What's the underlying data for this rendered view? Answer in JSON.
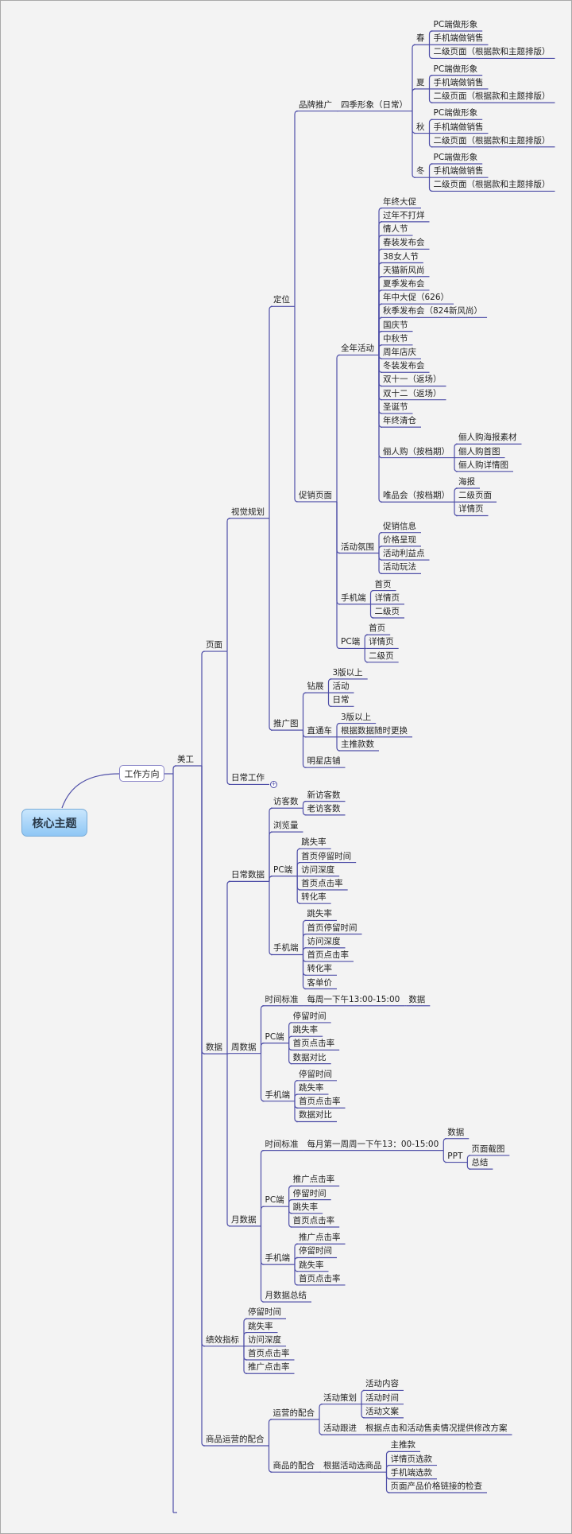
{
  "colors": {
    "line": "#4f4fa8",
    "background": "#f3f3f3",
    "root_fill": "#8fc7f5"
  },
  "map": {
    "root": "核心主题",
    "main": "工作方向",
    "branch": {
      "label": "美工",
      "children": [
        {
          "label": "页面",
          "children": [
            {
              "label": "视觉规划",
              "children": [
                {
                  "label": "定位",
                  "children": [
                    {
                      "label": "品牌推广",
                      "children": [
                        {
                          "label": "四季形象（日常）",
                          "children": [
                            {
                              "label": "春",
                              "children": [
                                {
                                  "label": "PC端做形象"
                                },
                                {
                                  "label": "手机端做销售"
                                },
                                {
                                  "label": "二级页面（根据款和主题排版）"
                                }
                              ]
                            },
                            {
                              "label": "夏",
                              "children": [
                                {
                                  "label": "PC端做形象"
                                },
                                {
                                  "label": "手机端做销售"
                                },
                                {
                                  "label": "二级页面（根据款和主题排版）"
                                }
                              ]
                            },
                            {
                              "label": "秋",
                              "children": [
                                {
                                  "label": "PC端做形象"
                                },
                                {
                                  "label": "手机端做销售"
                                },
                                {
                                  "label": "二级页面（根据款和主题排版）"
                                }
                              ]
                            },
                            {
                              "label": "冬",
                              "children": [
                                {
                                  "label": "PC端做形象"
                                },
                                {
                                  "label": "手机端做销售"
                                },
                                {
                                  "label": "二级页面（根据款和主题排版）"
                                }
                              ]
                            }
                          ]
                        }
                      ]
                    },
                    {
                      "label": "促销页面",
                      "children": [
                        {
                          "label": "全年活动",
                          "children": [
                            {
                              "label": "年终大促"
                            },
                            {
                              "label": "过年不打烊"
                            },
                            {
                              "label": "情人节"
                            },
                            {
                              "label": "春装发布会"
                            },
                            {
                              "label": "38女人节"
                            },
                            {
                              "label": "天猫新风尚"
                            },
                            {
                              "label": "夏季发布会"
                            },
                            {
                              "label": "年中大促（626）"
                            },
                            {
                              "label": "秋季发布会（824新风尚）"
                            },
                            {
                              "label": "国庆节"
                            },
                            {
                              "label": "中秋节"
                            },
                            {
                              "label": "周年店庆"
                            },
                            {
                              "label": "冬装发布会"
                            },
                            {
                              "label": "双十一（返场）"
                            },
                            {
                              "label": "双十二（返场）"
                            },
                            {
                              "label": "圣诞节"
                            },
                            {
                              "label": "年终清仓"
                            },
                            {
                              "label": "俪人购（按档期）",
                              "children": [
                                {
                                  "label": "俪人购海报素材"
                                },
                                {
                                  "label": "俪人购首图"
                                },
                                {
                                  "label": "俪人购详情图"
                                }
                              ]
                            },
                            {
                              "label": "唯品会（按档期）",
                              "children": [
                                {
                                  "label": "海报"
                                },
                                {
                                  "label": "二级页面"
                                },
                                {
                                  "label": "详情页"
                                }
                              ]
                            }
                          ]
                        },
                        {
                          "label": "活动氛围",
                          "children": [
                            {
                              "label": "促销信息"
                            },
                            {
                              "label": "价格呈现"
                            },
                            {
                              "label": "活动利益点"
                            },
                            {
                              "label": "活动玩法"
                            }
                          ]
                        },
                        {
                          "label": "手机端",
                          "children": [
                            {
                              "label": "首页"
                            },
                            {
                              "label": "详情页"
                            },
                            {
                              "label": "二级页"
                            }
                          ]
                        },
                        {
                          "label": "PC端",
                          "children": [
                            {
                              "label": "首页"
                            },
                            {
                              "label": "详情页"
                            },
                            {
                              "label": "二级页"
                            }
                          ]
                        }
                      ]
                    }
                  ]
                },
                {
                  "label": "推广图",
                  "children": [
                    {
                      "label": "钻展",
                      "children": [
                        {
                          "label": "3版以上"
                        },
                        {
                          "label": "活动"
                        },
                        {
                          "label": "日常"
                        }
                      ]
                    },
                    {
                      "label": "直通车",
                      "children": [
                        {
                          "label": "3版以上"
                        },
                        {
                          "label": "根据数据随时更换"
                        },
                        {
                          "label": "主推款数"
                        }
                      ]
                    },
                    {
                      "label": "明星店铺"
                    }
                  ]
                }
              ]
            },
            {
              "label": "日常工作",
              "collapsed": true
            }
          ]
        },
        {
          "label": "数据",
          "children": [
            {
              "label": "日常数据",
              "children": [
                {
                  "label": "访客数",
                  "children": [
                    {
                      "label": "新访客数"
                    },
                    {
                      "label": "老访客数"
                    }
                  ]
                },
                {
                  "label": "浏览量"
                },
                {
                  "label": "PC端",
                  "children": [
                    {
                      "label": "跳失率"
                    },
                    {
                      "label": "首页停留时间"
                    },
                    {
                      "label": "访问深度"
                    },
                    {
                      "label": "首页点击率"
                    },
                    {
                      "label": "转化率"
                    }
                  ]
                },
                {
                  "label": "手机端",
                  "children": [
                    {
                      "label": "跳失率"
                    },
                    {
                      "label": "首页停留时间"
                    },
                    {
                      "label": "访问深度"
                    },
                    {
                      "label": "首页点击率"
                    },
                    {
                      "label": "转化率"
                    },
                    {
                      "label": "客单价"
                    }
                  ]
                }
              ]
            },
            {
              "label": "周数据",
              "children": [
                {
                  "label": "时间标准",
                  "children": [
                    {
                      "label": "每周一下午13:00-15:00",
                      "children": [
                        {
                          "label": "数据"
                        }
                      ]
                    }
                  ]
                },
                {
                  "label": "PC端",
                  "children": [
                    {
                      "label": "停留时间"
                    },
                    {
                      "label": "跳失率"
                    },
                    {
                      "label": "首页点击率"
                    },
                    {
                      "label": "数据对比"
                    }
                  ]
                },
                {
                  "label": "手机端",
                  "children": [
                    {
                      "label": "停留时间"
                    },
                    {
                      "label": "跳失率"
                    },
                    {
                      "label": "首页点击率"
                    },
                    {
                      "label": "数据对比"
                    }
                  ]
                }
              ]
            },
            {
              "label": "月数据",
              "children": [
                {
                  "label": "时间标准",
                  "children": [
                    {
                      "label": "每月第一周周一下午13：00-15:00",
                      "children": [
                        {
                          "label": "数据"
                        },
                        {
                          "label": "PPT",
                          "children": [
                            {
                              "label": "页面截图"
                            },
                            {
                              "label": "总结"
                            }
                          ]
                        }
                      ]
                    }
                  ]
                },
                {
                  "label": "PC端",
                  "children": [
                    {
                      "label": "推广点击率"
                    },
                    {
                      "label": "停留时间"
                    },
                    {
                      "label": "跳失率"
                    },
                    {
                      "label": "首页点击率"
                    }
                  ]
                },
                {
                  "label": "手机端",
                  "children": [
                    {
                      "label": "推广点击率"
                    },
                    {
                      "label": "停留时间"
                    },
                    {
                      "label": "跳失率"
                    },
                    {
                      "label": "首页点击率"
                    }
                  ]
                },
                {
                  "label": "月数据总结"
                }
              ]
            }
          ]
        },
        {
          "label": "绩效指标",
          "children": [
            {
              "label": "停留时间"
            },
            {
              "label": "跳失率"
            },
            {
              "label": "访问深度"
            },
            {
              "label": "首页点击率"
            },
            {
              "label": "推广点击率"
            }
          ]
        },
        {
          "label": "商品运营的配合",
          "children": [
            {
              "label": "运营的配合",
              "children": [
                {
                  "label": "活动策划",
                  "children": [
                    {
                      "label": "活动内容"
                    },
                    {
                      "label": "活动时间"
                    },
                    {
                      "label": "活动文案"
                    }
                  ]
                },
                {
                  "label": "活动跟进",
                  "children": [
                    {
                      "label": "根据点击和活动售卖情况提供修改方案"
                    }
                  ]
                }
              ]
            },
            {
              "label": "商品的配合",
              "children": [
                {
                  "label": "根据活动选商品",
                  "children": [
                    {
                      "label": "主推款"
                    },
                    {
                      "label": "详情页选款"
                    },
                    {
                      "label": "手机端选款"
                    },
                    {
                      "label": "页面产品价格链接的检查"
                    }
                  ]
                }
              ]
            }
          ]
        }
      ]
    }
  }
}
